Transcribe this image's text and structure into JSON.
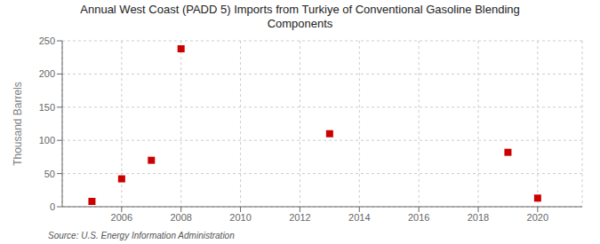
{
  "chart_data": {
    "type": "scatter",
    "title": "Annual West Coast (PADD 5) Imports from Turkiye of Conventional Gasoline Blending\nComponents",
    "ylabel": "Thousand Barrels",
    "annotations": [
      "Source: U.S. Energy Information Administration"
    ],
    "x": [
      2005,
      2006,
      2007,
      2008,
      2013,
      2019,
      2020
    ],
    "values": [
      8,
      42,
      70,
      238,
      110,
      82,
      13
    ],
    "color": "#CC0000",
    "marker": "square",
    "xlim": [
      2004.0,
      2021.5
    ],
    "ylim": [
      0,
      250
    ],
    "xticks": [
      2006,
      2008,
      2010,
      2012,
      2014,
      2016,
      2018,
      2020
    ],
    "yticks": [
      0,
      50,
      100,
      150,
      200,
      250
    ],
    "grid": true
  }
}
